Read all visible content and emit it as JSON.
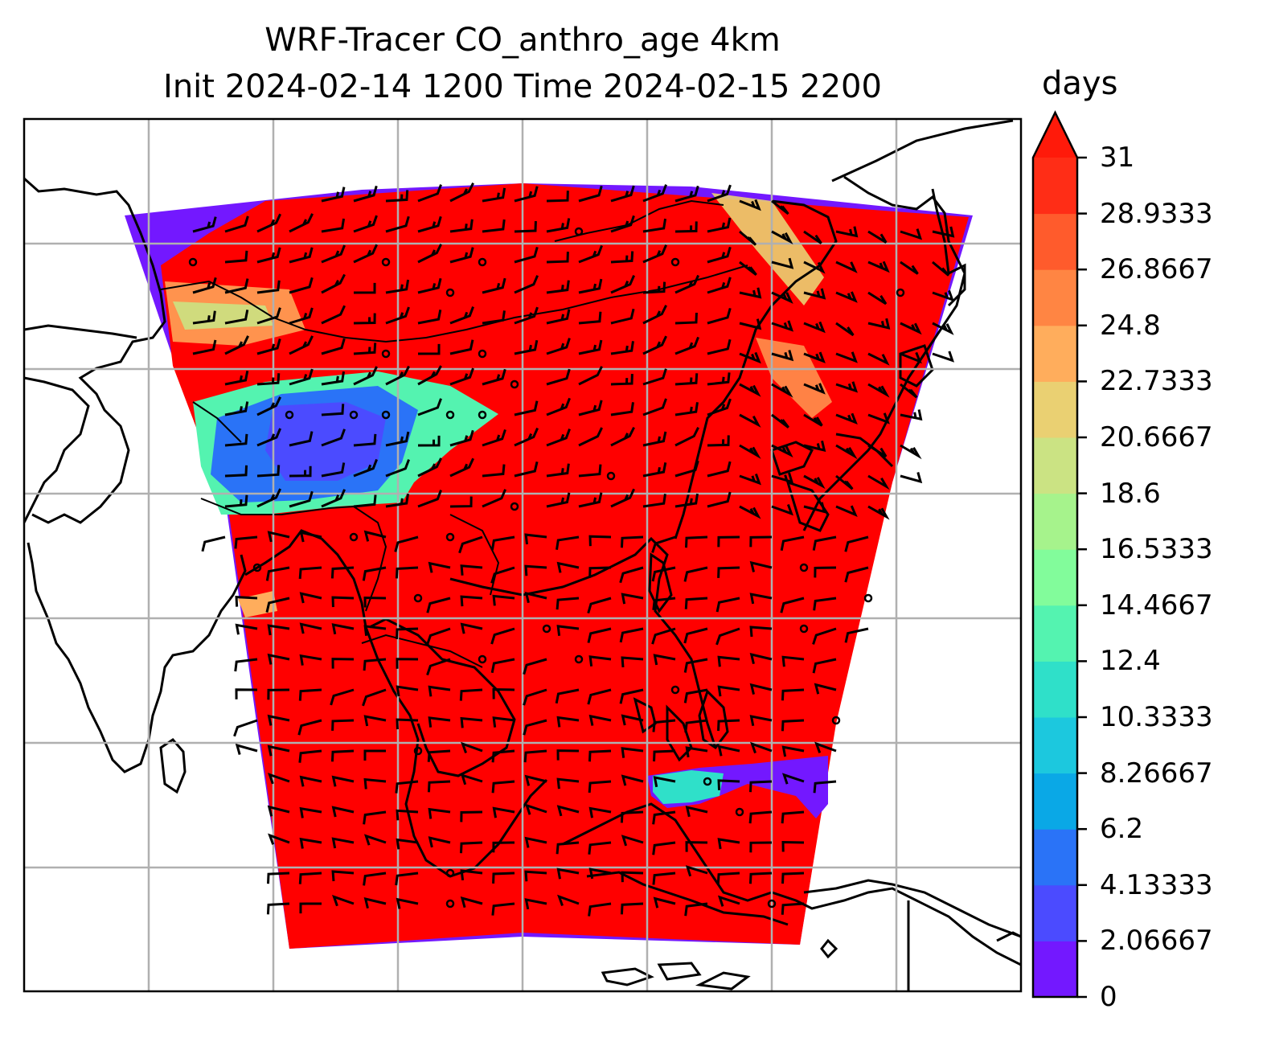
{
  "title_line1": "WRF-Tracer CO_anthro_age 4km",
  "title_line2": "Init 2024-02-14 1200 Time 2024-02-15 2200",
  "colorbar": {
    "unit": "days",
    "extend": "max",
    "ticks": [
      "0",
      "2.06667",
      "4.13333",
      "6.2",
      "8.26667",
      "10.3333",
      "12.4",
      "14.4667",
      "16.5333",
      "18.6",
      "20.6667",
      "22.7333",
      "24.8",
      "26.8667",
      "28.9333",
      "31"
    ],
    "colors": [
      "#7318ff",
      "#4b4bff",
      "#2a73f7",
      "#0aa8e6",
      "#1cc8de",
      "#2fe0c9",
      "#54f3b0",
      "#82fc9b",
      "#a6f38c",
      "#cbe383",
      "#ead072",
      "#ffad5c",
      "#ff8543",
      "#ff5b2c",
      "#ff2d16",
      "#ff1a0a"
    ]
  },
  "map": {
    "field_dominant_color": "#ff0000",
    "gridlines": true,
    "coastlines": true,
    "wind_barbs": true
  }
}
